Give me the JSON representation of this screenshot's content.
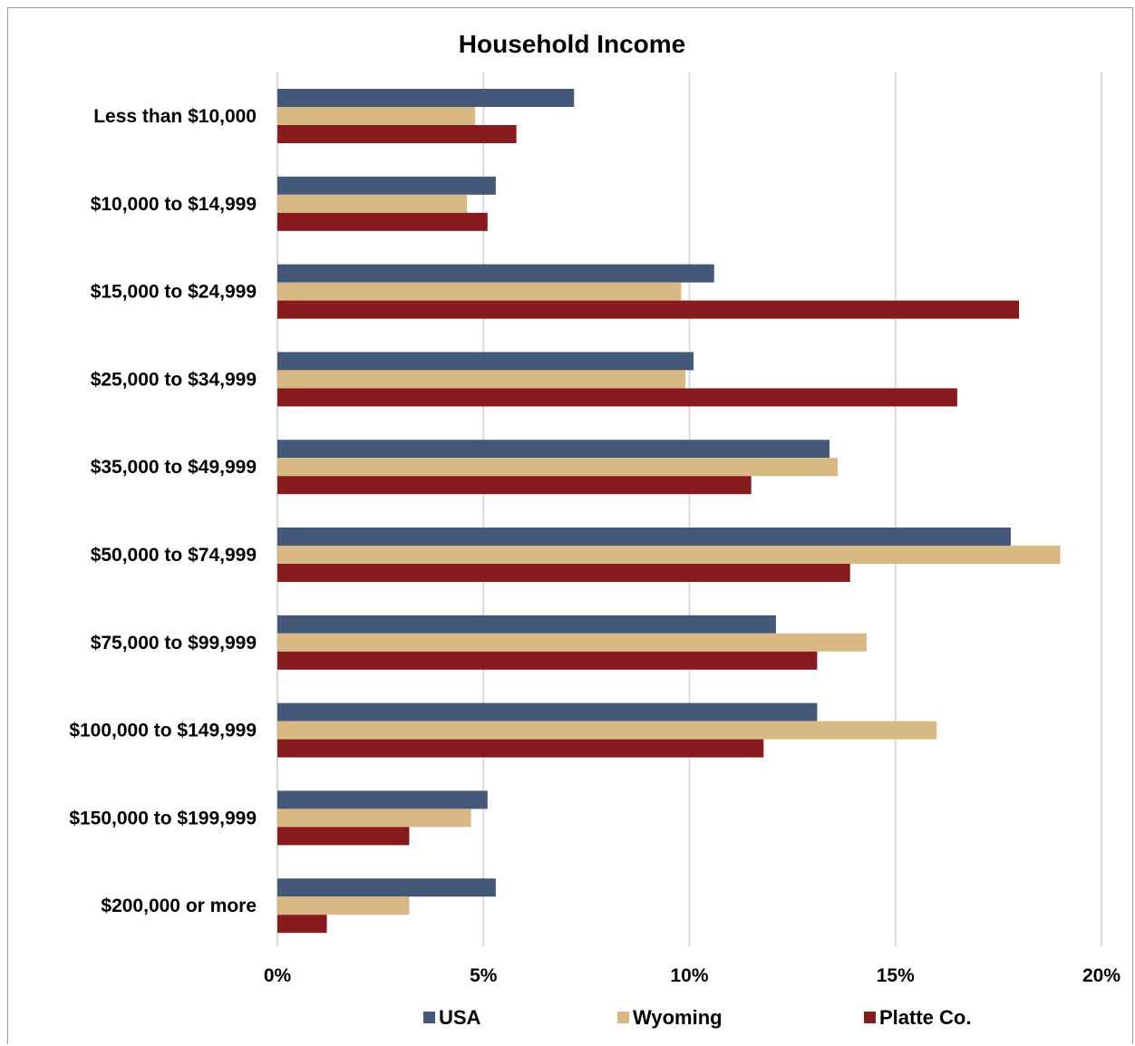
{
  "chart_data": {
    "type": "bar",
    "orientation": "horizontal",
    "title": "Household Income",
    "categories": [
      "Less than $10,000",
      "$10,000 to $14,999",
      "$15,000 to $24,999",
      "$25,000 to $34,999",
      "$35,000 to $49,999",
      "$50,000 to $74,999",
      "$75,000 to $99,999",
      "$100,000 to $149,999",
      "$150,000 to $199,999",
      "$200,000 or more"
    ],
    "series": [
      {
        "name": "USA",
        "color": "#44597a",
        "values": [
          7.2,
          5.3,
          10.6,
          10.1,
          13.4,
          17.8,
          12.1,
          13.1,
          5.1,
          5.3
        ]
      },
      {
        "name": "Wyoming",
        "color": "#d9b983",
        "values": [
          4.8,
          4.6,
          9.8,
          9.9,
          13.6,
          19.0,
          14.3,
          16.0,
          4.7,
          3.2
        ]
      },
      {
        "name": "Platte Co.",
        "color": "#871a1c",
        "values": [
          5.8,
          5.1,
          18.0,
          16.5,
          11.5,
          13.9,
          13.1,
          11.8,
          3.2,
          1.2
        ]
      }
    ],
    "xlim": [
      0,
      20
    ],
    "xticks": [
      "0%",
      "5%",
      "10%",
      "15%",
      "20%"
    ],
    "grid": true,
    "legend_position": "bottom"
  }
}
